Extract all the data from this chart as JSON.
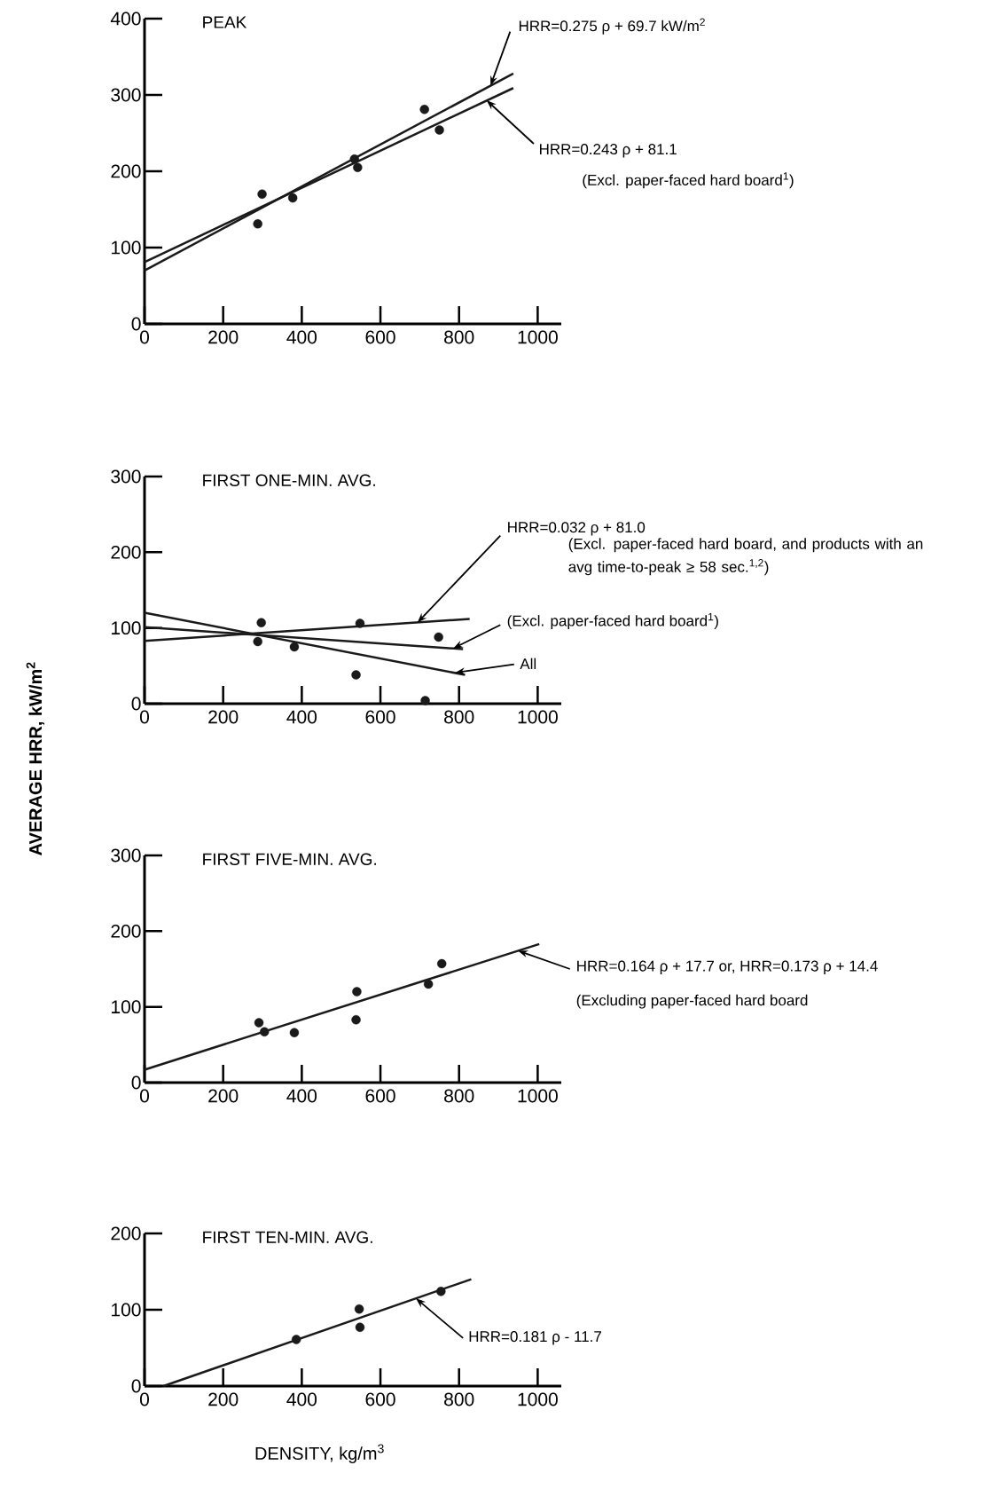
{
  "chart_data": [
    {
      "type": "scatter",
      "marker": "circle",
      "title": "PEAK",
      "xlim": [
        0,
        1060
      ],
      "ylim": [
        0,
        400
      ],
      "xticks": [
        0,
        200,
        400,
        600,
        800,
        1000
      ],
      "yticks": [
        0,
        100,
        200,
        300,
        400
      ],
      "series": [
        {
          "type": "scatter",
          "color": "#1a1a1a",
          "x": [
            288,
            299,
            377,
            534,
            542,
            712,
            750
          ],
          "values": [
            131,
            170,
            165,
            216,
            205,
            281,
            254
          ]
        },
        {
          "type": "line",
          "marker": "none",
          "color": "#1a1a1a",
          "x": [
            0,
            938
          ],
          "values": [
            70,
            328
          ]
        },
        {
          "type": "line",
          "marker": "none",
          "color": "#1a1a1a",
          "x": [
            0,
            938
          ],
          "values": [
            81,
            309
          ]
        }
      ],
      "annotations": [
        {
          "text": "HRR=0.275 ρ + 69.7 kW/m$^{2}$",
          "x": 880,
          "y": 312
        },
        {
          "text": "HRR=0.243 ρ + 81.1",
          "x": 870,
          "y": 293
        },
        "(Excl. paper-faced hard board$^{1}$)"
      ]
    },
    {
      "type": "scatter",
      "marker": "circle",
      "title": "FIRST ONE-MIN. AVG.",
      "ylabel": "AVERAGE HRR, kW/m$^{2}$",
      "xlim": [
        0,
        1060
      ],
      "ylim": [
        0,
        300
      ],
      "xticks": [
        0,
        200,
        400,
        600,
        800,
        1000
      ],
      "yticks": [
        0,
        100,
        200,
        300
      ],
      "series": [
        {
          "type": "scatter",
          "color": "#1a1a1a",
          "x": [
            297,
            288,
            381,
            548,
            748,
            538,
            714
          ],
          "values": [
            107,
            82,
            75,
            106,
            88,
            38,
            4
          ]
        },
        {
          "type": "line",
          "marker": "none",
          "color": "#1a1a1a",
          "x": [
            0,
            827
          ],
          "values": [
            83,
            112
          ]
        },
        {
          "type": "line",
          "marker": "none",
          "color": "#1a1a1a",
          "x": [
            0,
            810
          ],
          "values": [
            101,
            72
          ]
        },
        {
          "type": "line",
          "marker": "none",
          "color": "#1a1a1a",
          "x": [
            0,
            815
          ],
          "values": [
            120,
            38
          ]
        }
      ],
      "annotations": [
        {
          "text": "HRR=0.032 ρ + 81.0",
          "x": 694,
          "y": 107
        },
        "(Excl. paper-faced hard board, and products with an avg time-to-peak ≥ 58 sec.$^{1,2}$)",
        {
          "text": "(Excl. paper-faced hard board$^{1}$)",
          "x": 785,
          "y": 73
        },
        {
          "text": "All",
          "x": 790,
          "y": 41
        }
      ]
    },
    {
      "type": "scatter",
      "marker": "circle",
      "title": "FIRST FIVE-MIN. AVG.",
      "xlim": [
        0,
        1060
      ],
      "ylim": [
        0,
        300
      ],
      "xticks": [
        0,
        200,
        400,
        600,
        800,
        1000
      ],
      "yticks": [
        0,
        100,
        200,
        300
      ],
      "series": [
        {
          "type": "scatter",
          "color": "#1a1a1a",
          "x": [
            291,
            305,
            381,
            540,
            538,
            722,
            756
          ],
          "values": [
            79,
            67,
            66,
            120,
            83,
            130,
            157
          ]
        },
        {
          "type": "line",
          "marker": "none",
          "color": "#1a1a1a",
          "x": [
            0,
            1004
          ],
          "values": [
            17,
            183
          ]
        }
      ],
      "annotations": [
        {
          "text": "HRR=0.164 ρ + 17.7 or, HRR=0.173 ρ + 14.4",
          "x": 950,
          "y": 174
        },
        "(Excluding paper-faced hard board"
      ]
    },
    {
      "type": "scatter",
      "marker": "circle",
      "title": "FIRST TEN-MIN. AVG.",
      "xlabel": "DENSITY, kg/m$^{3}$",
      "xlim": [
        0,
        1060
      ],
      "ylim": [
        0,
        200
      ],
      "xticks": [
        0,
        200,
        400,
        600,
        800,
        1000
      ],
      "yticks": [
        0,
        100,
        200
      ],
      "series": [
        {
          "type": "scatter",
          "color": "#1a1a1a",
          "x": [
            386,
            546,
            548,
            754
          ],
          "values": [
            61,
            101,
            77,
            124
          ]
        },
        {
          "type": "line",
          "marker": "none",
          "color": "#1a1a1a",
          "x": [
            48,
            831
          ],
          "values": [
            0,
            140
          ]
        }
      ],
      "annotations": [
        {
          "text": "HRR=0.181 ρ - 11.7",
          "x": 690,
          "y": 115
        }
      ]
    }
  ]
}
